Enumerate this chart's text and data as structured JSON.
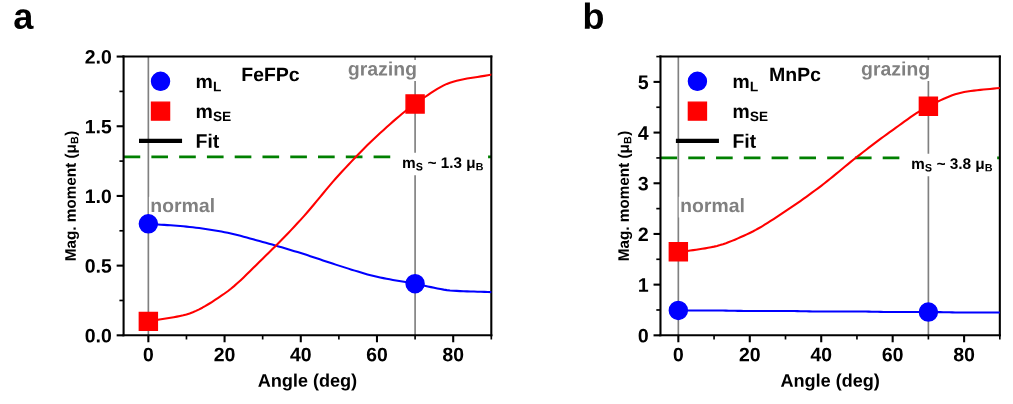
{
  "chart_data": [
    {
      "type": "scatter",
      "title": "a",
      "xlabel": "Angle (deg)",
      "ylabel": "Mag. moment (μ$_{B}$)",
      "xlim": [
        -6.5,
        90
      ],
      "xticks": [
        0,
        20,
        40,
        60,
        80
      ],
      "ylim": [
        0,
        2
      ],
      "yticks": [
        {
          "value": 0,
          "label": "0.0"
        },
        {
          "value": 0.5,
          "label": "0.5"
        },
        {
          "value": 1,
          "label": "1.0"
        },
        {
          "value": 1.5,
          "label": "1.5"
        },
        {
          "value": 2,
          "label": "2.0"
        }
      ],
      "grid": false,
      "legend": "top left",
      "annotations": [
        "FeFPc",
        "Fit"
      ],
      "ref_lines": [
        {
          "axis": "y",
          "value": 1.28,
          "label": "m$_{S}$ ~ 1.3 μ$_{B}$",
          "color": "#008000",
          "line_style": "dashed"
        },
        {
          "axis": "x",
          "value": 0,
          "label": "normal",
          "color": "#808080",
          "line_style": "solid"
        },
        {
          "axis": "x",
          "value": 70,
          "label": "grazing",
          "color": "#808080",
          "line_style": "solid"
        }
      ],
      "series": [
        {
          "type": "line",
          "marker": "none",
          "color": "#0000ff",
          "x": [
            0,
            10,
            20,
            30,
            40,
            50,
            60,
            70,
            80,
            90
          ],
          "values": [
            0.8,
            0.78,
            0.74,
            0.67,
            0.59,
            0.5,
            0.42,
            0.37,
            0.32,
            0.31
          ]
        },
        {
          "type": "line",
          "marker": "none",
          "color": "#ff0000",
          "x": [
            0,
            10,
            20,
            30,
            40,
            50,
            60,
            70,
            80,
            90
          ],
          "values": [
            0.1,
            0.15,
            0.3,
            0.55,
            0.83,
            1.15,
            1.43,
            1.66,
            1.82,
            1.87
          ]
        },
        {
          "name": "m$_{L}$",
          "marker": "circle",
          "color": "#0000ff",
          "x": [
            0,
            70
          ],
          "values": [
            0.8,
            0.37
          ]
        },
        {
          "name": "m$_{SE}$",
          "marker": "square",
          "color": "#ff0000",
          "x": [
            0,
            70
          ],
          "values": [
            0.1,
            1.66
          ]
        }
      ]
    },
    {
      "type": "scatter",
      "title": "b",
      "xlabel": "Angle (deg)",
      "ylabel": "Mag. moment (μ$_{B}$)",
      "xlim": [
        -5,
        90
      ],
      "xticks": [
        0,
        20,
        40,
        60,
        80
      ],
      "ylim": [
        0,
        5.5
      ],
      "yticks": [
        0,
        1,
        2,
        3,
        4,
        5
      ],
      "grid": false,
      "legend": "top left",
      "annotations": [
        "MnPc",
        "Fit"
      ],
      "ref_lines": [
        {
          "axis": "y",
          "value": 3.5,
          "label": "m$_{S}$ ~ 3.8 μ$_{B}$",
          "color": "#008000",
          "line_style": "dashed"
        },
        {
          "axis": "x",
          "value": 0,
          "label": "normal",
          "color": "#808080",
          "line_style": "solid"
        },
        {
          "axis": "x",
          "value": 70,
          "label": "grazing",
          "color": "#808080",
          "line_style": "solid"
        }
      ],
      "series": [
        {
          "type": "line",
          "marker": "none",
          "color": "#0000ff",
          "x": [
            0,
            10,
            20,
            30,
            40,
            50,
            60,
            70,
            80,
            90
          ],
          "values": [
            0.49,
            0.49,
            0.48,
            0.48,
            0.47,
            0.47,
            0.46,
            0.46,
            0.45,
            0.45
          ]
        },
        {
          "type": "line",
          "marker": "none",
          "color": "#ff0000",
          "x": [
            0,
            10,
            20,
            30,
            40,
            50,
            60,
            70,
            80,
            90
          ],
          "values": [
            1.64,
            1.75,
            2.02,
            2.45,
            2.95,
            3.52,
            4.05,
            4.52,
            4.8,
            4.88
          ]
        },
        {
          "name": "m$_{L}$",
          "marker": "circle",
          "color": "#0000ff",
          "x": [
            0,
            70
          ],
          "values": [
            0.49,
            0.46
          ]
        },
        {
          "name": "m$_{SE}$",
          "marker": "square",
          "color": "#ff0000",
          "x": [
            0,
            70
          ],
          "values": [
            1.65,
            4.52
          ]
        }
      ]
    }
  ]
}
